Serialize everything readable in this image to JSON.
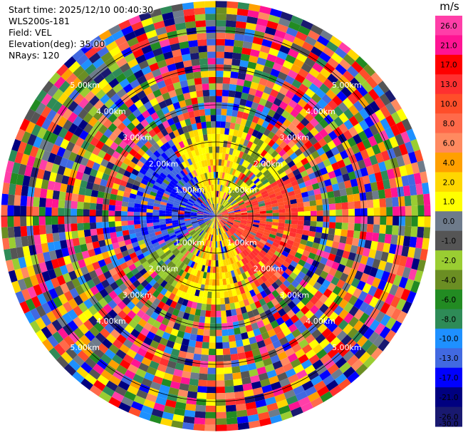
{
  "info": {
    "start_time": "Start time: 2025/12/10 00:40:30",
    "station": "WLS200s-181",
    "field": "Field: VEL",
    "elevation": "Elevation(deg): 35.00",
    "nrays": "NRays: 120"
  },
  "chart_data": {
    "type": "heatmap",
    "title": "",
    "field": "VEL",
    "unit": "m/s",
    "n_rays": 120,
    "elevation_deg": 35.0,
    "range_rings_km": [
      1,
      2,
      3,
      4,
      5
    ],
    "ring_labels": [
      "1.00km",
      "2.00km",
      "3.00km",
      "4.00km",
      "5.00km"
    ],
    "max_range_km": 5.8,
    "colorbar": {
      "tick_labels": [
        "26.0",
        "21.0",
        "17.0",
        "13.0",
        "10.0",
        "8.0",
        "6.0",
        "4.0",
        "2.0",
        "1.0",
        "0.0",
        "-1.0",
        "-2.0",
        "-4.0",
        "-6.0",
        "-8.0",
        "-10.0",
        "-13.0",
        "-17.0",
        "-21.0",
        "-26.0",
        "-30.0"
      ],
      "colors": [
        "#ff3ea8",
        "#ff1493",
        "#ff0000",
        "#ff3030",
        "#ff4e2a",
        "#ff6a4a",
        "#ff8a60",
        "#ffa000",
        "#ffd700",
        "#ffff00",
        "#6e7b8b",
        "#555555",
        "#9acd32",
        "#6b8e23",
        "#228b22",
        "#2e8b57",
        "#1e90ff",
        "#4169e1",
        "#0000ff",
        "#000080",
        "#191970"
      ]
    }
  }
}
